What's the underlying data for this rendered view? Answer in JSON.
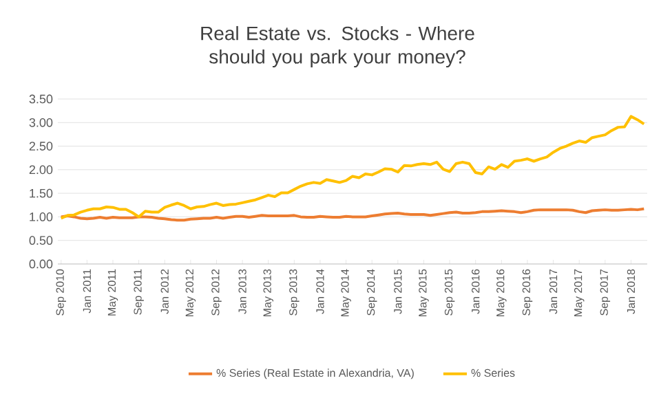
{
  "chart_data": {
    "type": "line",
    "title": "Real Estate vs. Stocks - Where should you park your money?",
    "categories": [
      "Sep 2010",
      null,
      null,
      null,
      "Jan 2011",
      null,
      null,
      null,
      "May 2011",
      null,
      null,
      null,
      "Sep 2011",
      null,
      null,
      null,
      "Jan 2012",
      null,
      null,
      null,
      "May 2012",
      null,
      null,
      null,
      "Sep 2012",
      null,
      null,
      null,
      "Jan 2013",
      null,
      null,
      null,
      "May 2013",
      null,
      null,
      null,
      "Sep 2013",
      null,
      null,
      null,
      "Jan 2014",
      null,
      null,
      null,
      "May 2014",
      null,
      null,
      null,
      "Sep 2014",
      null,
      null,
      null,
      "Jan 2015",
      null,
      null,
      null,
      "May 2015",
      null,
      null,
      null,
      "Sep 2015",
      null,
      null,
      null,
      "Jan 2016",
      null,
      null,
      null,
      "May 2016",
      null,
      null,
      null,
      "Sep 2016",
      null,
      null,
      null,
      "Jan 2017",
      null,
      null,
      null,
      "May 2017",
      null,
      null,
      null,
      "Sep 2017",
      null,
      null,
      null,
      "Jan 2018",
      null,
      null
    ],
    "series": [
      {
        "name": "% Series (Real Estate in Alexandria, VA)",
        "color": "#ed7d31",
        "values": [
          1.0,
          1.02,
          1.0,
          0.97,
          0.96,
          0.97,
          0.99,
          0.97,
          0.99,
          0.98,
          0.98,
          0.98,
          1.0,
          1.0,
          0.99,
          0.97,
          0.96,
          0.94,
          0.93,
          0.93,
          0.95,
          0.96,
          0.97,
          0.97,
          0.99,
          0.97,
          0.99,
          1.01,
          1.01,
          0.99,
          1.01,
          1.03,
          1.02,
          1.02,
          1.02,
          1.02,
          1.03,
          1.0,
          0.99,
          0.99,
          1.01,
          1.0,
          0.99,
          0.99,
          1.01,
          1.0,
          1.0,
          1.0,
          1.02,
          1.04,
          1.06,
          1.07,
          1.08,
          1.06,
          1.05,
          1.05,
          1.05,
          1.03,
          1.05,
          1.07,
          1.09,
          1.1,
          1.08,
          1.08,
          1.09,
          1.11,
          1.11,
          1.12,
          1.13,
          1.12,
          1.11,
          1.09,
          1.11,
          1.14,
          1.15,
          1.15,
          1.15,
          1.15,
          1.15,
          1.14,
          1.11,
          1.09,
          1.13,
          1.14,
          1.15,
          1.14,
          1.14,
          1.15,
          1.16,
          1.15,
          1.17
        ]
      },
      {
        "name": "% Series",
        "color": "#ffc000",
        "values": [
          0.97,
          1.03,
          1.04,
          1.1,
          1.14,
          1.17,
          1.17,
          1.21,
          1.2,
          1.16,
          1.16,
          1.09,
          1.0,
          1.12,
          1.1,
          1.1,
          1.2,
          1.25,
          1.29,
          1.24,
          1.17,
          1.21,
          1.22,
          1.26,
          1.29,
          1.24,
          1.26,
          1.27,
          1.3,
          1.33,
          1.36,
          1.41,
          1.46,
          1.43,
          1.51,
          1.51,
          1.58,
          1.65,
          1.7,
          1.73,
          1.71,
          1.79,
          1.76,
          1.73,
          1.77,
          1.86,
          1.83,
          1.91,
          1.89,
          1.95,
          2.02,
          2.01,
          1.95,
          2.09,
          2.08,
          2.11,
          2.13,
          2.11,
          2.16,
          2.01,
          1.96,
          2.13,
          2.16,
          2.13,
          1.94,
          1.91,
          2.06,
          2.01,
          2.11,
          2.05,
          2.18,
          2.2,
          2.23,
          2.18,
          2.23,
          2.27,
          2.37,
          2.45,
          2.5,
          2.56,
          2.61,
          2.58,
          2.68,
          2.71,
          2.74,
          2.83,
          2.9,
          2.91,
          3.13,
          3.06,
          2.97
        ]
      }
    ],
    "ylim": [
      0,
      3.5
    ],
    "yticks": [
      {
        "value": 0,
        "label": "0.00"
      },
      {
        "value": 0.5,
        "label": "0.50"
      },
      {
        "value": 1,
        "label": "1.00"
      },
      {
        "value": 1.5,
        "label": "1.50"
      },
      {
        "value": 2,
        "label": "2.00"
      },
      {
        "value": 2.5,
        "label": "2.50"
      },
      {
        "value": 3,
        "label": "3.00"
      },
      {
        "value": 3.5,
        "label": "3.50"
      }
    ],
    "grid": "y",
    "legend": "bottom",
    "marker": "none",
    "line_style": "solid"
  }
}
